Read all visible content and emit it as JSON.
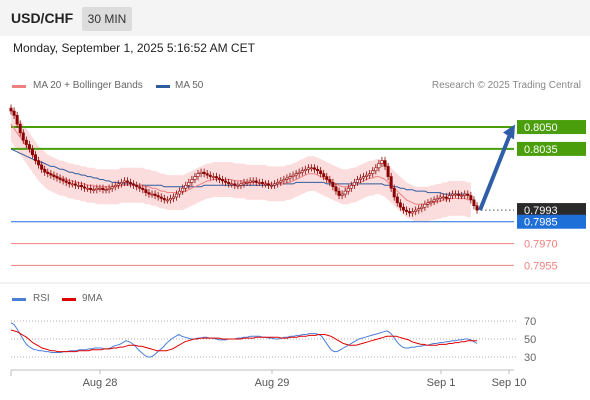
{
  "header": {
    "symbol": "USD/CHF",
    "timeframe": "30 MIN"
  },
  "timestamp": "Monday, September 1, 2025 5:16:52 AM CET",
  "credit": "Research © 2025 Trading Central",
  "colors": {
    "ma20": "#f08080",
    "ma50": "#2e5c9e",
    "band": "#fbd5d5",
    "resistance": "#4a9e0b",
    "pivot": "#1e6fd8",
    "support": "#f08080",
    "current": "#2a2a2a",
    "arrow": "#2f5ea8",
    "rsi": "#4a7fd8",
    "rsi_ma": "#e00000",
    "candle": "#8b0000"
  },
  "legend": [
    {
      "label": "MA 20 + Bollinger Bands",
      "color": "#f08080"
    },
    {
      "label": "MA 50",
      "color": "#2e5c9e"
    }
  ],
  "sub_legend": [
    {
      "label": "RSI",
      "color": "#4a7fd8"
    },
    {
      "label": "9MA",
      "color": "#e00000"
    }
  ],
  "chart_data": [
    {
      "type": "candlestick",
      "title": "",
      "ylim": [
        0.7945,
        0.8072
      ],
      "x_labels": [
        "Aug 28",
        "Aug 29",
        "Sep 1",
        "Sep 10"
      ],
      "price_levels": [
        {
          "label": "0.8050",
          "value": 0.805,
          "kind": "resistance"
        },
        {
          "label": "0.8035",
          "value": 0.8035,
          "kind": "resistance"
        },
        {
          "label": "0.7993",
          "value": 0.7993,
          "kind": "current"
        },
        {
          "label": "0.7985",
          "value": 0.7985,
          "kind": "pivot"
        },
        {
          "label": "0.7970",
          "value": 0.797,
          "kind": "support"
        },
        {
          "label": "0.7955",
          "value": 0.7955,
          "kind": "support"
        }
      ],
      "close": [
        0.8061,
        0.8058,
        0.8052,
        0.8046,
        0.8041,
        0.8038,
        0.8035,
        0.8031,
        0.8027,
        0.8024,
        0.8021,
        0.8019,
        0.8018,
        0.8017,
        0.8016,
        0.8015,
        0.8014,
        0.8013,
        0.8012,
        0.8011,
        0.8011,
        0.801,
        0.801,
        0.8009,
        0.8008,
        0.8008,
        0.8007,
        0.8007,
        0.8008,
        0.8008,
        0.8007,
        0.8007,
        0.8008,
        0.8009,
        0.801,
        0.8011,
        0.8012,
        0.8013,
        0.8012,
        0.8011,
        0.801,
        0.8009,
        0.8008,
        0.8007,
        0.8005,
        0.8004,
        0.8004,
        0.8003,
        0.8002,
        0.8001,
        0.8,
        0.8,
        0.8001,
        0.8002,
        0.8004,
        0.8006,
        0.8008,
        0.801,
        0.8012,
        0.8014,
        0.8016,
        0.8018,
        0.8019,
        0.8018,
        0.8017,
        0.8016,
        0.8016,
        0.8015,
        0.8014,
        0.8013,
        0.8012,
        0.8011,
        0.8011,
        0.801,
        0.801,
        0.8011,
        0.8012,
        0.8012,
        0.8013,
        0.8013,
        0.8012,
        0.8012,
        0.8011,
        0.8011,
        0.801,
        0.801,
        0.8011,
        0.8012,
        0.8013,
        0.8014,
        0.8015,
        0.8016,
        0.8017,
        0.8018,
        0.8019,
        0.802,
        0.8021,
        0.8022,
        0.8022,
        0.8021,
        0.802,
        0.8018,
        0.8016,
        0.8014,
        0.8012,
        0.8009,
        0.8006,
        0.8003,
        0.8004,
        0.8006,
        0.8008,
        0.801,
        0.8012,
        0.8014,
        0.8015,
        0.8016,
        0.8017,
        0.8018,
        0.802,
        0.8022,
        0.8025,
        0.8027,
        0.8023,
        0.8016,
        0.8008,
        0.8002,
        0.7998,
        0.7995,
        0.7993,
        0.7992,
        0.7991,
        0.7992,
        0.7993,
        0.7994,
        0.7995,
        0.7997,
        0.7998,
        0.7999,
        0.8,
        0.8001,
        0.8002,
        0.8002,
        0.8001,
        0.8003,
        0.8004,
        0.8004,
        0.8003,
        0.8003,
        0.8004,
        0.8003,
        0.8,
        0.7996,
        0.7993
      ],
      "ma20": [
        0.8052,
        0.8049,
        0.8046,
        0.8043,
        0.804,
        0.8037,
        0.8034,
        0.8031,
        0.8028,
        0.8025,
        0.8023,
        0.8021,
        0.8019,
        0.8018,
        0.8017,
        0.8016,
        0.8015,
        0.8015,
        0.8014,
        0.8013,
        0.8013,
        0.8012,
        0.8012,
        0.8011,
        0.8011,
        0.801,
        0.801,
        0.801,
        0.8009,
        0.8009,
        0.8009,
        0.8009,
        0.8009,
        0.8009,
        0.8009,
        0.8009,
        0.801,
        0.801,
        0.801,
        0.801,
        0.801,
        0.801,
        0.801,
        0.801,
        0.8009,
        0.8009,
        0.8008,
        0.8008,
        0.8007,
        0.8006,
        0.8006,
        0.8005,
        0.8005,
        0.8005,
        0.8005,
        0.8005,
        0.8005,
        0.8006,
        0.8007,
        0.8008,
        0.8009,
        0.801,
        0.8011,
        0.8012,
        0.8013,
        0.8013,
        0.8014,
        0.8014,
        0.8014,
        0.8014,
        0.8014,
        0.8014,
        0.8014,
        0.8013,
        0.8013,
        0.8013,
        0.8013,
        0.8012,
        0.8012,
        0.8012,
        0.8012,
        0.8012,
        0.8012,
        0.8012,
        0.8011,
        0.8011,
        0.8011,
        0.8011,
        0.8011,
        0.8011,
        0.8012,
        0.8012,
        0.8013,
        0.8014,
        0.8015,
        0.8016,
        0.8017,
        0.8018,
        0.8018,
        0.8018,
        0.8017,
        0.8016,
        0.8015,
        0.8014,
        0.8013,
        0.8012,
        0.8011,
        0.801,
        0.8009,
        0.8009,
        0.8009,
        0.801,
        0.801,
        0.8011,
        0.8012,
        0.8013,
        0.8014,
        0.8015,
        0.8015,
        0.8016,
        0.8016,
        0.8015,
        0.8014,
        0.8012,
        0.801,
        0.8008,
        0.8006,
        0.8004,
        0.8002,
        0.8,
        0.7999,
        0.7998,
        0.7997,
        0.7997,
        0.7997,
        0.7997,
        0.7997,
        0.7998,
        0.7998,
        0.7999,
        0.7999,
        0.8,
        0.8,
        0.8001,
        0.8001,
        0.8001,
        0.8001,
        0.8001,
        0.8001,
        0.8,
        0.8
      ],
      "ma50": [
        0.8035,
        0.8034,
        0.8033,
        0.8032,
        0.8031,
        0.803,
        0.8029,
        0.8028,
        0.8027,
        0.8026,
        0.8026,
        0.8025,
        0.8024,
        0.8023,
        0.8023,
        0.8022,
        0.8021,
        0.8021,
        0.802,
        0.8019,
        0.8019,
        0.8018,
        0.8018,
        0.8017,
        0.8017,
        0.8016,
        0.8016,
        0.8015,
        0.8015,
        0.8014,
        0.8014,
        0.8013,
        0.8013,
        0.8012,
        0.8012,
        0.8012,
        0.8011,
        0.8011,
        0.8011,
        0.8011,
        0.8011,
        0.801,
        0.801,
        0.801,
        0.801,
        0.801,
        0.801,
        0.801,
        0.801,
        0.801,
        0.8009,
        0.8009,
        0.8009,
        0.8009,
        0.8009,
        0.8009,
        0.8009,
        0.8009,
        0.8009,
        0.8009,
        0.8009,
        0.8009,
        0.8009,
        0.801,
        0.801,
        0.801,
        0.801,
        0.801,
        0.801,
        0.801,
        0.801,
        0.801,
        0.801,
        0.801,
        0.801,
        0.801,
        0.801,
        0.801,
        0.801,
        0.801,
        0.801,
        0.801,
        0.801,
        0.801,
        0.801,
        0.801,
        0.801,
        0.8011,
        0.8011,
        0.8011,
        0.8011,
        0.8011,
        0.8011,
        0.8012,
        0.8012,
        0.8012,
        0.8012,
        0.8012,
        0.8012,
        0.8012,
        0.8012,
        0.8012,
        0.8012,
        0.8011,
        0.8011,
        0.8011,
        0.8011,
        0.8011,
        0.8011,
        0.8011,
        0.8011,
        0.8011,
        0.8011,
        0.8011,
        0.8011,
        0.8011,
        0.8011,
        0.8011,
        0.8011,
        0.8011,
        0.8011,
        0.8011,
        0.801,
        0.801,
        0.801,
        0.8009,
        0.8009,
        0.8008,
        0.8008,
        0.8007,
        0.8007,
        0.8007,
        0.8006,
        0.8006,
        0.8006,
        0.8006,
        0.8005,
        0.8005,
        0.8005,
        0.8005,
        0.8005,
        0.8004,
        0.8004,
        0.8004,
        0.8004,
        0.8004,
        0.8004,
        0.8004,
        0.8004,
        0.8004
      ],
      "band_width": 0.0012,
      "forecast_arrow": {
        "from": 0.7993,
        "to": 0.8049
      }
    },
    {
      "type": "line",
      "title": "",
      "ylim": [
        20,
        80
      ],
      "y_ticks": [
        70,
        50,
        30
      ],
      "series": [
        {
          "name": "RSI",
          "values": [
            68,
            66,
            61,
            55,
            49,
            44,
            41,
            39,
            38,
            37,
            37,
            36,
            36,
            35,
            35,
            35,
            35,
            36,
            36,
            37,
            37,
            37,
            38,
            38,
            38,
            39,
            39,
            40,
            40,
            40,
            39,
            39,
            40,
            42,
            43,
            44,
            46,
            48,
            47,
            45,
            42,
            38,
            35,
            32,
            30,
            30,
            32,
            35,
            38,
            41,
            45,
            48,
            51,
            53,
            55,
            53,
            52,
            51,
            50,
            50,
            51,
            51,
            52,
            52,
            51,
            51,
            50,
            49,
            49,
            49,
            50,
            50,
            50,
            51,
            51,
            52,
            52,
            53,
            53,
            53,
            53,
            52,
            52,
            51,
            51,
            50,
            50,
            51,
            52,
            52,
            53,
            53,
            54,
            54,
            55,
            55,
            56,
            56,
            56,
            55,
            53,
            48,
            43,
            38,
            36,
            36,
            38,
            40,
            42,
            44,
            46,
            48,
            50,
            51,
            52,
            53,
            54,
            55,
            56,
            57,
            58,
            59,
            57,
            53,
            48,
            44,
            41,
            40,
            40,
            41,
            41,
            42,
            42,
            43,
            43,
            44,
            45,
            45,
            46,
            46,
            47,
            47,
            48,
            48,
            49,
            49,
            50,
            50,
            49,
            47,
            45
          ]
        },
        {
          "name": "9MA",
          "values": [
            60,
            59,
            58,
            56,
            54,
            52,
            49,
            46,
            44,
            42,
            40,
            39,
            38,
            37,
            37,
            36,
            36,
            36,
            36,
            36,
            36,
            36,
            37,
            37,
            37,
            37,
            38,
            38,
            38,
            38,
            39,
            39,
            39,
            40,
            40,
            41,
            41,
            42,
            43,
            43,
            43,
            42,
            42,
            41,
            40,
            39,
            38,
            37,
            37,
            37,
            37,
            38,
            39,
            41,
            43,
            45,
            47,
            48,
            49,
            50,
            50,
            51,
            51,
            51,
            51,
            51,
            51,
            51,
            50,
            50,
            50,
            50,
            50,
            50,
            50,
            51,
            51,
            51,
            51,
            52,
            52,
            52,
            52,
            52,
            52,
            52,
            52,
            51,
            51,
            51,
            52,
            52,
            52,
            53,
            53,
            53,
            54,
            54,
            54,
            55,
            55,
            55,
            54,
            53,
            51,
            49,
            47,
            45,
            44,
            43,
            43,
            43,
            44,
            45,
            46,
            47,
            48,
            49,
            50,
            51,
            52,
            53,
            53,
            53,
            53,
            52,
            51,
            50,
            49,
            47,
            46,
            45,
            44,
            44,
            43,
            43,
            43,
            43,
            44,
            44,
            44,
            45,
            45,
            46,
            46,
            47,
            47,
            48,
            48,
            48,
            48
          ]
        }
      ]
    }
  ]
}
